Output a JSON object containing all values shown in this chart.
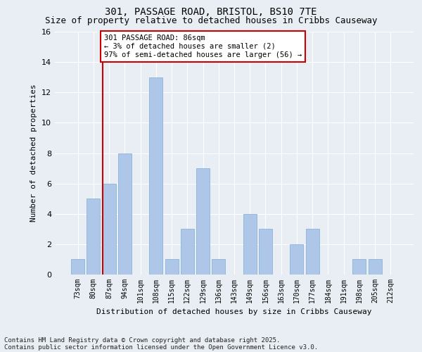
{
  "title1": "301, PASSAGE ROAD, BRISTOL, BS10 7TE",
  "title2": "Size of property relative to detached houses in Cribbs Causeway",
  "xlabel": "Distribution of detached houses by size in Cribbs Causeway",
  "ylabel": "Number of detached properties",
  "categories": [
    "73sqm",
    "80sqm",
    "87sqm",
    "94sqm",
    "101sqm",
    "108sqm",
    "115sqm",
    "122sqm",
    "129sqm",
    "136sqm",
    "143sqm",
    "149sqm",
    "156sqm",
    "163sqm",
    "170sqm",
    "177sqm",
    "184sqm",
    "191sqm",
    "198sqm",
    "205sqm",
    "212sqm"
  ],
  "values": [
    1,
    5,
    6,
    8,
    0,
    13,
    1,
    3,
    7,
    1,
    0,
    4,
    3,
    0,
    2,
    3,
    0,
    0,
    1,
    1,
    0
  ],
  "bar_color": "#aec6e8",
  "bar_edge_color": "#8ab4d8",
  "ylim": [
    0,
    16
  ],
  "yticks": [
    0,
    2,
    4,
    6,
    8,
    10,
    12,
    14,
    16
  ],
  "subject_bar_index": 2,
  "subject_line_color": "#cc0000",
  "annotation_text": "301 PASSAGE ROAD: 86sqm\n← 3% of detached houses are smaller (2)\n97% of semi-detached houses are larger (56) →",
  "annotation_box_color": "#ffffff",
  "annotation_box_edge": "#cc0000",
  "footer1": "Contains HM Land Registry data © Crown copyright and database right 2025.",
  "footer2": "Contains public sector information licensed under the Open Government Licence v3.0.",
  "background_color": "#e8eef4",
  "plot_background": "#e8eef4",
  "grid_color": "#ffffff",
  "title1_fontsize": 10,
  "title2_fontsize": 9,
  "annotation_fontsize": 7.5,
  "footer_fontsize": 6.5
}
